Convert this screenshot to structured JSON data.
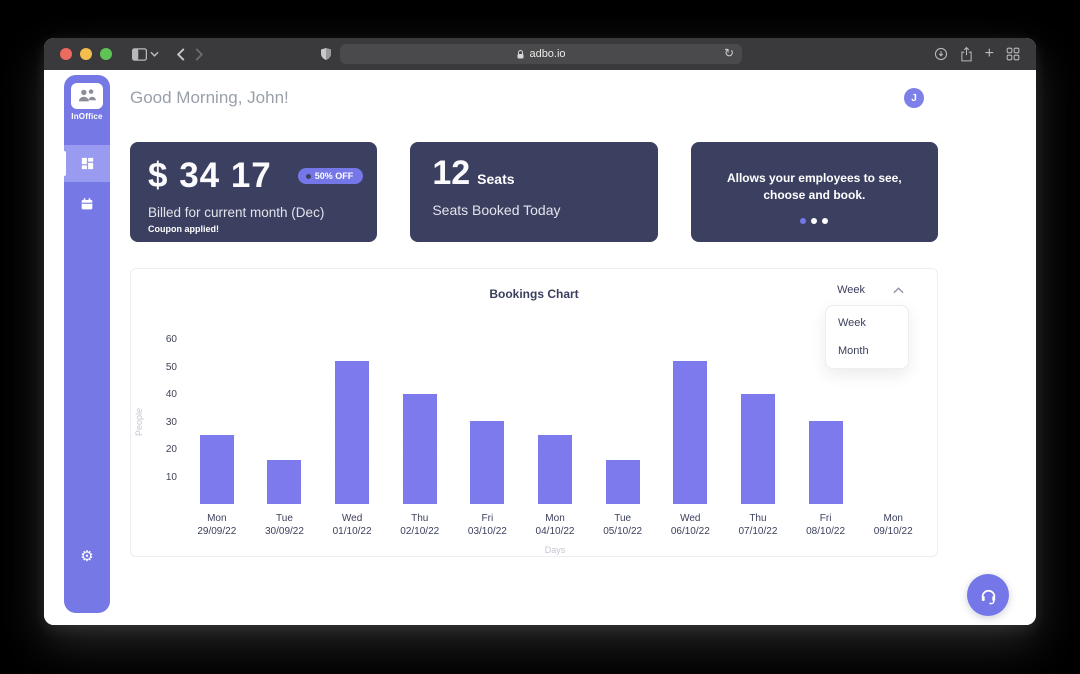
{
  "browser": {
    "url": "adbo.io",
    "icons": [
      "panel-toggle",
      "chevron-down",
      "back",
      "forward",
      "shield",
      "lock",
      "reload",
      "downloads",
      "share",
      "new-tab",
      "tab-overview"
    ]
  },
  "sidebar": {
    "logo_label": "InOffice",
    "logo_icon": "people-icon",
    "items": [
      {
        "name": "dashboard",
        "icon": "dashboard-grid-icon",
        "active": true
      },
      {
        "name": "calendar",
        "icon": "calendar-icon",
        "active": false
      }
    ],
    "footer_icon": "settings-gear-icon"
  },
  "header": {
    "greeting": "Good Morning, John!",
    "avatar_initial": "J"
  },
  "cards": {
    "billing": {
      "amount": "$ 34 17",
      "badge": "50% OFF",
      "label": "Billed for current month (Dec)",
      "note": "Coupon applied!"
    },
    "seats": {
      "count": "12",
      "unit": "Seats",
      "label": "Seats Booked Today"
    },
    "info": {
      "line1": "Allows your employees to see,",
      "line2": "choose and book.",
      "dots": 3,
      "active_dot": 0
    }
  },
  "chart": {
    "title": "Bookings Chart",
    "range_selector": {
      "selected": "Week",
      "options": [
        "Week",
        "Month"
      ],
      "open": true
    }
  },
  "chart_data": {
    "type": "bar",
    "title": "Bookings Chart",
    "xlabel": "Days",
    "ylabel": "People",
    "categories": [
      "Mon",
      "Tue",
      "Wed",
      "Thu",
      "Fri",
      "Mon",
      "Tue",
      "Wed",
      "Thu",
      "Fri",
      "Mon"
    ],
    "dates": [
      "29/09/22",
      "30/09/22",
      "01/10/22",
      "02/10/22",
      "03/10/22",
      "04/10/22",
      "05/10/22",
      "06/10/22",
      "07/10/22",
      "08/10/22",
      "09/10/22"
    ],
    "values": [
      25,
      16,
      52,
      40,
      30,
      25,
      16,
      52,
      40,
      30,
      0
    ],
    "ylim": [
      0,
      60
    ],
    "yticks": [
      10,
      20,
      30,
      40,
      50,
      60
    ],
    "bar_color": "#7c7aed",
    "grid": false,
    "legend": false
  },
  "fab": {
    "icon": "headset-icon"
  },
  "colors": {
    "accent": "#7577e8",
    "sidebar": "#7678e6",
    "sidebar_active": "#999bf0",
    "card_bg": "#3c4060",
    "bar": "#7c7aed",
    "toolbar": "#3a3a3c"
  }
}
